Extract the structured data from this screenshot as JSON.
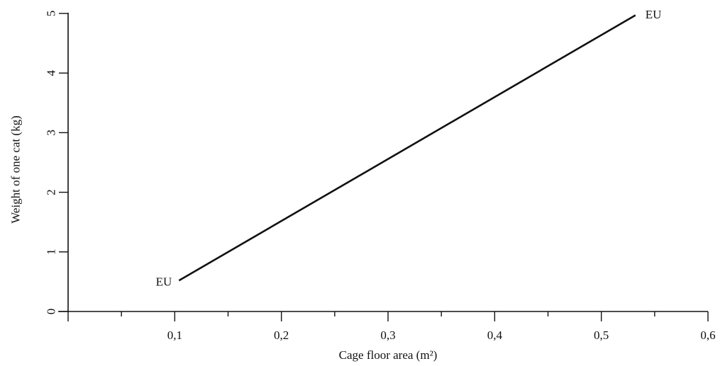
{
  "chart_data": {
    "type": "line",
    "title": "",
    "xlabel": "Cage floor area (m²)",
    "ylabel": "Weight of one cat (kg)",
    "xlim": [
      0,
      0.6
    ],
    "ylim": [
      0,
      5
    ],
    "x_ticks": [
      0.1,
      0.2,
      0.3,
      0.4,
      0.5,
      0.6
    ],
    "x_tick_labels": [
      "0,1",
      "0,2",
      "0,3",
      "0,4",
      "0,5",
      "0,6"
    ],
    "x_minor_ticks": [
      0.05,
      0.15,
      0.25,
      0.35,
      0.45,
      0.55
    ],
    "y_ticks": [
      0,
      1,
      2,
      3,
      4,
      5
    ],
    "y_tick_labels": [
      "0",
      "1",
      "2",
      "3",
      "4",
      "5"
    ],
    "grid": false,
    "legend": "none",
    "series": [
      {
        "x": [
          0.104,
          0.532
        ],
        "y": [
          0.52,
          4.97
        ]
      }
    ],
    "annotations": [
      {
        "text": "EU",
        "x": 0.104,
        "y": 0.52,
        "anchor": "left"
      },
      {
        "text": "EU",
        "x": 0.532,
        "y": 4.97,
        "anchor": "right"
      }
    ],
    "colors": {
      "ink": "#111111",
      "background": "#ffffff"
    }
  }
}
